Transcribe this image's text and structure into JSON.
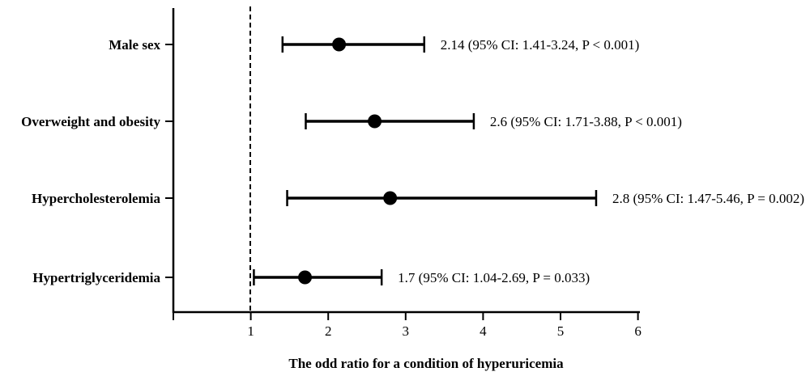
{
  "chart_data": {
    "type": "scatter",
    "xlabel": "The odd ratio for a condition of hyperuricemia",
    "xlim": [
      0,
      6
    ],
    "x_ticks": [
      "1",
      "2",
      "3",
      "4",
      "5",
      "6"
    ],
    "reference_line": {
      "x": 1,
      "style": "dashed"
    },
    "grid": false,
    "rows": [
      {
        "label": "Male sex",
        "or": 2.14,
        "ci_low": 1.41,
        "ci_high": 3.24,
        "annotation": "2.14 (95% CI: 1.41-3.24, P < 0.001)"
      },
      {
        "label": "Overweight and obesity",
        "or": 2.6,
        "ci_low": 1.71,
        "ci_high": 3.88,
        "annotation": "2.6 (95% CI: 1.71-3.88, P < 0.001)"
      },
      {
        "label": "Hypercholesterolemia",
        "or": 2.8,
        "ci_low": 1.47,
        "ci_high": 5.46,
        "annotation": "2.8 (95% CI: 1.47-5.46, P = 0.002)"
      },
      {
        "label": "Hypertriglyceridemia",
        "or": 1.7,
        "ci_low": 1.04,
        "ci_high": 2.69,
        "annotation": "1.7 (95% CI: 1.04-2.69, P = 0.033)"
      }
    ]
  }
}
